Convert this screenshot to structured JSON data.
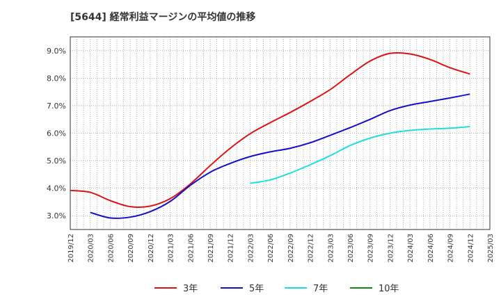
{
  "chart_data": {
    "type": "line",
    "title": "[5644]  経常利益マージンの平均値の推移",
    "xlabel": "",
    "ylabel": "",
    "ylim": [
      2.5,
      9.5
    ],
    "yticks": [
      3.0,
      4.0,
      5.0,
      6.0,
      7.0,
      8.0,
      9.0
    ],
    "ytick_labels": [
      "3.0%",
      "4.0%",
      "5.0%",
      "6.0%",
      "7.0%",
      "8.0%",
      "9.0%"
    ],
    "x_labels": [
      "2019/12",
      "2020/03",
      "2020/06",
      "2020/09",
      "2020/12",
      "2021/03",
      "2021/06",
      "2021/09",
      "2021/12",
      "2022/03",
      "2022/06",
      "2022/09",
      "2022/12",
      "2023/03",
      "2023/06",
      "2023/09",
      "2023/12",
      "2024/03",
      "2024/06",
      "2024/09",
      "2024/12",
      "2025/03"
    ],
    "grid": true,
    "legend_position": "bottom",
    "series": [
      {
        "name": "3年",
        "color": "#dd1111",
        "values": [
          3.92,
          3.85,
          3.55,
          3.33,
          3.35,
          3.62,
          4.15,
          4.82,
          5.45,
          5.98,
          6.38,
          6.75,
          7.15,
          7.58,
          8.12,
          8.62,
          8.9,
          8.88,
          8.68,
          8.38,
          8.15,
          null
        ]
      },
      {
        "name": "5年",
        "color": "#1111cc",
        "values": [
          null,
          3.12,
          2.92,
          2.95,
          3.15,
          3.52,
          4.1,
          4.58,
          4.9,
          5.15,
          5.32,
          5.45,
          5.65,
          5.92,
          6.2,
          6.5,
          6.82,
          7.02,
          7.15,
          7.28,
          7.42,
          null
        ]
      },
      {
        "name": "7年",
        "color": "#22dddd",
        "values": [
          null,
          null,
          null,
          null,
          null,
          null,
          null,
          null,
          null,
          4.18,
          4.3,
          4.55,
          4.85,
          5.18,
          5.55,
          5.82,
          6.0,
          6.1,
          6.15,
          6.18,
          6.24,
          null
        ]
      },
      {
        "name": "10年",
        "color": "#118811",
        "values": [
          null,
          null,
          null,
          null,
          null,
          null,
          null,
          null,
          null,
          null,
          null,
          null,
          null,
          null,
          null,
          null,
          null,
          null,
          null,
          null,
          null,
          null
        ]
      }
    ]
  }
}
